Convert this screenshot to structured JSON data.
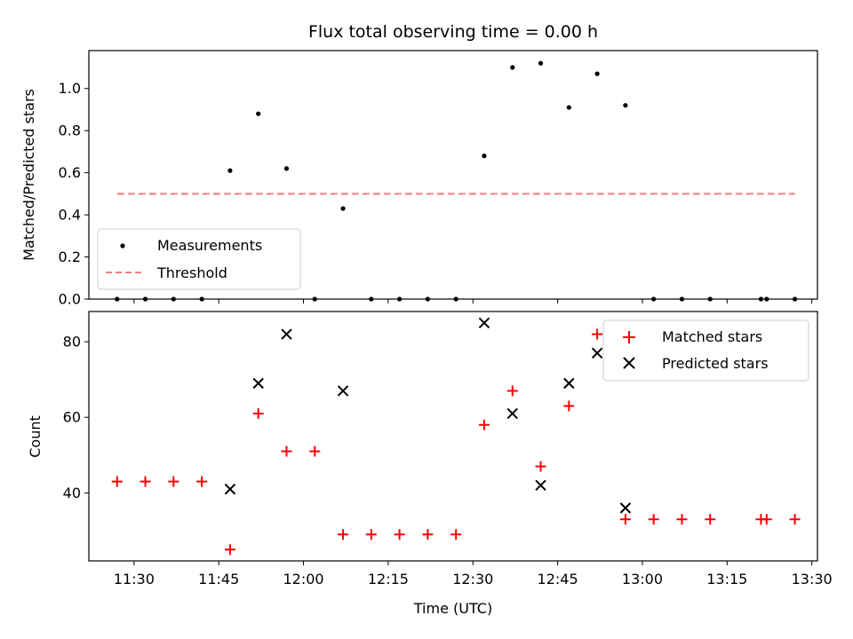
{
  "chart_data": [
    {
      "type": "scatter",
      "title": "Flux total observing time = 0.00 h",
      "xlabel": "",
      "ylabel": "Matched/Predicted stars",
      "xlim": [
        "11:22",
        "13:31"
      ],
      "ylim": [
        0,
        1.18
      ],
      "yticks": [
        "0.0",
        "0.2",
        "0.4",
        "0.6",
        "0.8",
        "1.0"
      ],
      "grid": false,
      "legend": {
        "placement": "lower-left",
        "entries": [
          "Measurements",
          "Threshold"
        ]
      },
      "series": [
        {
          "name": "Measurements",
          "marker": "dot",
          "color": "#000000",
          "points": [
            [
              "11:27",
              0.0
            ],
            [
              "11:32",
              0.0
            ],
            [
              "11:37",
              0.0
            ],
            [
              "11:42",
              0.0
            ],
            [
              "11:47",
              0.61
            ],
            [
              "11:52",
              0.88
            ],
            [
              "11:57",
              0.62
            ],
            [
              "12:02",
              0.0
            ],
            [
              "12:07",
              0.43
            ],
            [
              "12:12",
              0.0
            ],
            [
              "12:17",
              0.0
            ],
            [
              "12:22",
              0.0
            ],
            [
              "12:27",
              0.0
            ],
            [
              "12:32",
              0.68
            ],
            [
              "12:37",
              1.1
            ],
            [
              "12:42",
              1.12
            ],
            [
              "12:47",
              0.91
            ],
            [
              "12:52",
              1.07
            ],
            [
              "12:57",
              0.92
            ],
            [
              "13:02",
              0.0
            ],
            [
              "13:07",
              0.0
            ],
            [
              "13:12",
              0.0
            ],
            [
              "13:21",
              0.0
            ],
            [
              "13:22",
              0.0
            ],
            [
              "13:27",
              0.0
            ]
          ]
        },
        {
          "name": "Threshold",
          "line": "dashed",
          "color": "#f08080",
          "points": [
            [
              "11:27",
              0.5
            ],
            [
              "13:27",
              0.5
            ]
          ]
        }
      ]
    },
    {
      "type": "scatter",
      "title": "",
      "xlabel": "Time (UTC)",
      "ylabel": "Count",
      "xlim": [
        "11:22",
        "13:31"
      ],
      "ylim": [
        22,
        88
      ],
      "yticks": [
        "40",
        "60",
        "80"
      ],
      "xticks": [
        "11:30",
        "11:45",
        "12:00",
        "12:15",
        "12:30",
        "12:45",
        "13:00",
        "13:15",
        "13:30"
      ],
      "grid": false,
      "legend": {
        "placement": "top-right",
        "entries": [
          "Matched stars",
          "Predicted stars"
        ]
      },
      "series": [
        {
          "name": "Matched stars",
          "marker": "plus",
          "color": "#ff0000",
          "points": [
            [
              "11:27",
              43
            ],
            [
              "11:32",
              43
            ],
            [
              "11:37",
              43
            ],
            [
              "11:42",
              43
            ],
            [
              "11:47",
              25
            ],
            [
              "11:52",
              61
            ],
            [
              "11:57",
              51
            ],
            [
              "12:02",
              51
            ],
            [
              "12:07",
              29
            ],
            [
              "12:12",
              29
            ],
            [
              "12:17",
              29
            ],
            [
              "12:22",
              29
            ],
            [
              "12:27",
              29
            ],
            [
              "12:32",
              58
            ],
            [
              "12:37",
              67
            ],
            [
              "12:42",
              47
            ],
            [
              "12:47",
              63
            ],
            [
              "12:52",
              82
            ],
            [
              "12:57",
              33
            ],
            [
              "13:02",
              33
            ],
            [
              "13:07",
              33
            ],
            [
              "13:12",
              33
            ],
            [
              "13:21",
              33
            ],
            [
              "13:22",
              33
            ],
            [
              "13:27",
              33
            ]
          ]
        },
        {
          "name": "Predicted stars",
          "marker": "x",
          "color": "#000000",
          "points": [
            [
              "11:47",
              41
            ],
            [
              "11:52",
              69
            ],
            [
              "11:57",
              82
            ],
            [
              "12:07",
              67
            ],
            [
              "12:32",
              85
            ],
            [
              "12:37",
              61
            ],
            [
              "12:42",
              42
            ],
            [
              "12:47",
              69
            ],
            [
              "12:52",
              77
            ],
            [
              "12:57",
              36
            ]
          ]
        }
      ]
    }
  ]
}
